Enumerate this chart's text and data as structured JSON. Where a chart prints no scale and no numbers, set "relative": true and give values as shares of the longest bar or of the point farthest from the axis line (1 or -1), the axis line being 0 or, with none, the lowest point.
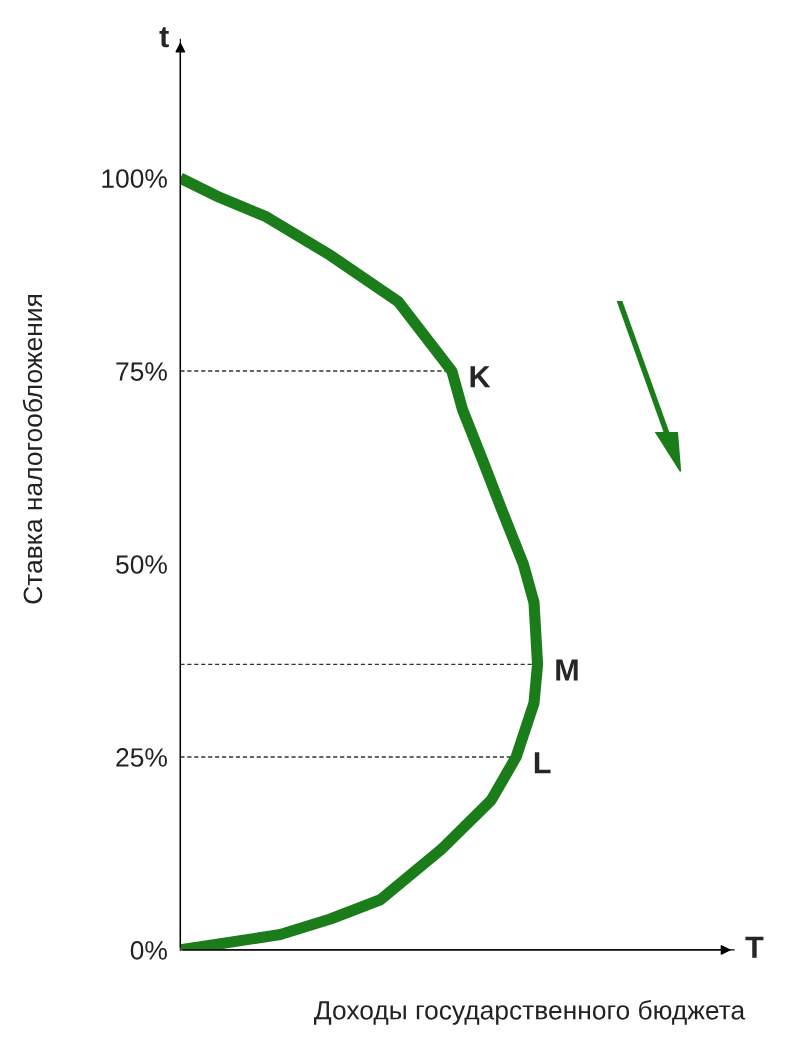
{
  "chart_data": {
    "type": "line",
    "relative": true,
    "orientation": "horizontal",
    "xlabel": "Доходы государственного бюджета",
    "ylabel": "Ставка налогообложения",
    "series": [
      {
        "color": "#1a7d1a",
        "x": [
          0,
          2,
          4,
          6.5,
          13,
          19.4,
          25,
          32,
          37,
          45,
          50,
          57,
          63,
          70,
          75,
          84,
          90,
          95,
          97.5,
          100
        ],
        "values": [
          0,
          0.28,
          0.42,
          0.56,
          0.73,
          0.87,
          0.94,
          0.99,
          1,
          0.99,
          0.96,
          0.9,
          0.85,
          0.79,
          0.76,
          0.61,
          0.42,
          0.24,
          0.11,
          0
        ]
      }
    ],
    "ylim": [
      0,
      118
    ],
    "yticks": [
      {
        "value": 0,
        "label": "0%"
      },
      {
        "value": 25,
        "label": "25%"
      },
      {
        "value": 50,
        "label": "50%"
      },
      {
        "value": 75,
        "label": "75%"
      },
      {
        "value": 100,
        "label": "100%"
      }
    ],
    "ref_lines": [
      {
        "axis": "y",
        "value": 75,
        "label": "K",
        "line_style": "dashed",
        "color": "#333333"
      },
      {
        "axis": "y",
        "value": 37,
        "label": "M",
        "line_style": "dashed",
        "color": "#333333"
      },
      {
        "axis": "y",
        "value": 25,
        "label": "L",
        "line_style": "dashed",
        "color": "#333333"
      }
    ],
    "annotations": [
      "t",
      "T"
    ]
  }
}
